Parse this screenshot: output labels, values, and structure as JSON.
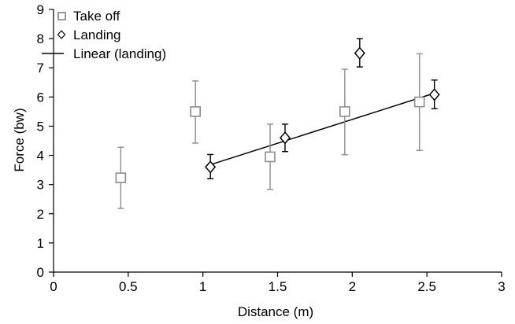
{
  "chart_data": {
    "type": "scatter",
    "title": "",
    "xlabel": "Distance (m)",
    "ylabel": "Force (bw)",
    "xlim": [
      0,
      3
    ],
    "ylim": [
      0,
      9
    ],
    "x_ticks": [
      0,
      0.5,
      1,
      1.5,
      2,
      2.5,
      3
    ],
    "x_tick_labels": [
      "0",
      "0.5",
      "1",
      "1.5",
      "2",
      "2.5",
      "3"
    ],
    "y_ticks": [
      0,
      1,
      2,
      3,
      4,
      5,
      6,
      7,
      8,
      9
    ],
    "y_tick_labels": [
      "0",
      "1",
      "2",
      "3",
      "4",
      "5",
      "6",
      "7",
      "8",
      "9"
    ],
    "grid": false,
    "legend_position": "top-left",
    "series": [
      {
        "name": "Take off",
        "marker": "square",
        "color": "#8c8c8c",
        "points": [
          {
            "x": 0.45,
            "y": 3.23,
            "err_low": 2.18,
            "err_high": 4.28
          },
          {
            "x": 0.95,
            "y": 5.5,
            "err_low": 4.42,
            "err_high": 6.55
          },
          {
            "x": 1.45,
            "y": 3.95,
            "err_low": 2.83,
            "err_high": 5.07
          },
          {
            "x": 1.95,
            "y": 5.5,
            "err_low": 4.02,
            "err_high": 6.95
          },
          {
            "x": 2.45,
            "y": 5.83,
            "err_low": 4.17,
            "err_high": 7.48
          }
        ]
      },
      {
        "name": "Landing",
        "marker": "diamond",
        "color": "#000000",
        "points": [
          {
            "x": 1.05,
            "y": 3.6,
            "err_low": 3.2,
            "err_high": 4.03
          },
          {
            "x": 1.55,
            "y": 4.6,
            "err_low": 4.13,
            "err_high": 5.07
          },
          {
            "x": 2.05,
            "y": 7.5,
            "err_low": 7.03,
            "err_high": 8.0
          },
          {
            "x": 2.55,
            "y": 6.08,
            "err_low": 5.6,
            "err_high": 6.58
          }
        ]
      }
    ],
    "trendline": {
      "name": "Linear (landing)",
      "color": "#000000",
      "x1": 1.05,
      "y1": 3.68,
      "x2": 2.55,
      "y2": 6.13
    }
  }
}
